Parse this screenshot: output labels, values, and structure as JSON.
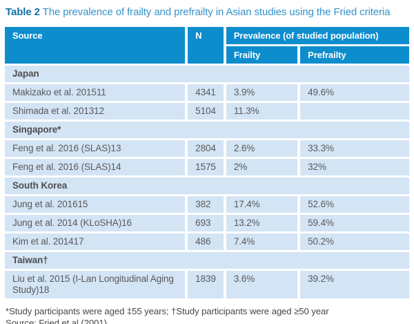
{
  "title": {
    "label": "Table 2",
    "text": "The prevalence of frailty and prefrailty in Asian studies using the Fried criteria"
  },
  "table": {
    "columns": {
      "source": "Source",
      "n": "N",
      "prevalence_group": "Prevalence (of studied population)",
      "frailty": "Frailty",
      "prefrailty": "Prefrailty"
    },
    "sections": [
      {
        "name": "Japan",
        "rows": [
          {
            "source": "Makizako et al. 201511",
            "n": "4341",
            "frailty": "3.9%",
            "prefrailty": "49.6%"
          },
          {
            "source": "Shimada et al. 201312",
            "n": "5104",
            "frailty": "11.3%",
            "prefrailty": ""
          }
        ]
      },
      {
        "name": "Singapore*",
        "rows": [
          {
            "source": "Feng et al. 2016 (SLAS)13",
            "n": "2804",
            "frailty": "2.6%",
            "prefrailty": "33.3%"
          },
          {
            "source": "Feng et al. 2016 (SLAS)14",
            "n": "1575",
            "frailty": "2%",
            "prefrailty": "32%"
          }
        ]
      },
      {
        "name": "South Korea",
        "rows": [
          {
            "source": "Jung et al. 201615",
            "n": "382",
            "frailty": "17.4%",
            "prefrailty": "52.6%"
          },
          {
            "source": "Jung et al. 2014 (KLoSHA)16",
            "n": "693",
            "frailty": "13.2%",
            "prefrailty": "59.4%"
          },
          {
            "source": "Kim et al. 201417",
            "n": "486",
            "frailty": "7.4%",
            "prefrailty": "50.2%"
          }
        ]
      },
      {
        "name": "Taiwan†",
        "rows": [
          {
            "source": "Liu et al. 2015 (I-Lan Longitudinal Aging Study)18",
            "n": "1839",
            "frailty": "3.6%",
            "prefrailty": "39.2%"
          }
        ]
      }
    ]
  },
  "footnotes": {
    "line1": "*Study participants were aged ‡55 years; †Study participants were aged ≥50 year",
    "line2": "Source: Fried et al (2001)"
  },
  "colors": {
    "header_bg": "#0E8DCD",
    "header_text": "#FFFFFF",
    "row_bg": "#D3E4F4",
    "body_text": "#58595B",
    "section_text": "#4D4E50",
    "title_accent": "#1470A8",
    "title_text": "#3392CA",
    "footnote_text": "#47474A"
  }
}
